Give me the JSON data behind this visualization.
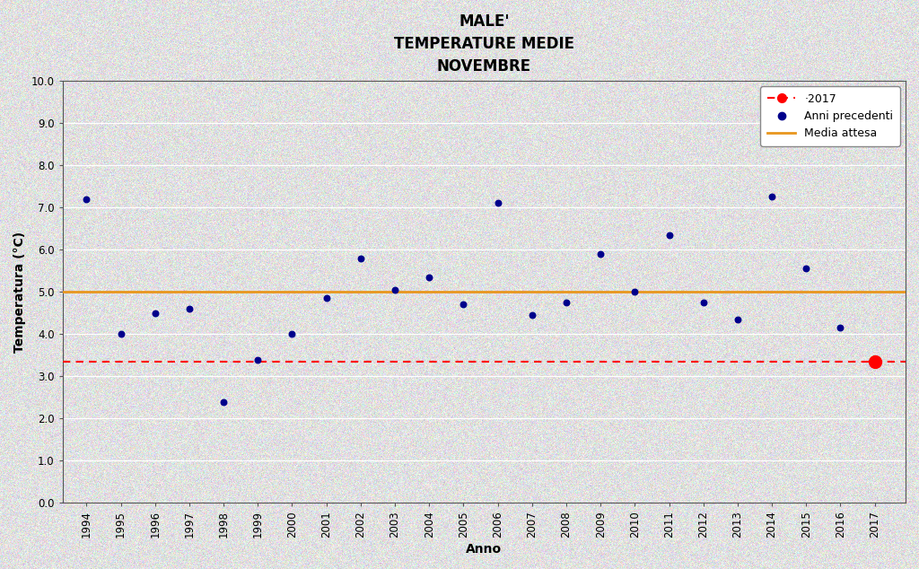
{
  "title": "MALE'\nTEMPERATURE MEDIE\nNOVEMBRE",
  "xlabel": "Anno",
  "ylabel": "Temperatura (°C)",
  "years": [
    1994,
    1995,
    1996,
    1997,
    1998,
    1999,
    2000,
    2001,
    2002,
    2003,
    2004,
    2005,
    2006,
    2007,
    2008,
    2009,
    2010,
    2011,
    2012,
    2013,
    2014,
    2015,
    2016
  ],
  "temps": [
    7.2,
    4.0,
    4.5,
    4.6,
    2.4,
    3.4,
    4.0,
    4.85,
    5.8,
    5.05,
    5.35,
    4.7,
    7.1,
    4.45,
    4.75,
    5.9,
    5.0,
    6.35,
    4.75,
    4.35,
    7.25,
    5.55,
    4.15
  ],
  "year_2017": 2017,
  "temp_2017": 3.35,
  "media_attesa": 5.0,
  "dashed_line_y": 3.35,
  "ylim": [
    0.0,
    10.0
  ],
  "yticks": [
    0.0,
    1.0,
    2.0,
    3.0,
    4.0,
    5.0,
    6.0,
    7.0,
    8.0,
    9.0,
    10.0
  ],
  "dot_color": "#00008B",
  "dot_2017_color": "#FF0000",
  "media_color": "#E8961E",
  "dashed_color": "#FF0000",
  "bg_color_fig": "#E8E8E8",
  "bg_color_ax": "#F0EFEB",
  "legend_2017": "·2017",
  "legend_prev": "Anni precedenti",
  "legend_media": "Media attesa",
  "dot_size": 22,
  "dot_2017_size": 100,
  "noise_seed": 42,
  "noise_alpha": 0.35
}
